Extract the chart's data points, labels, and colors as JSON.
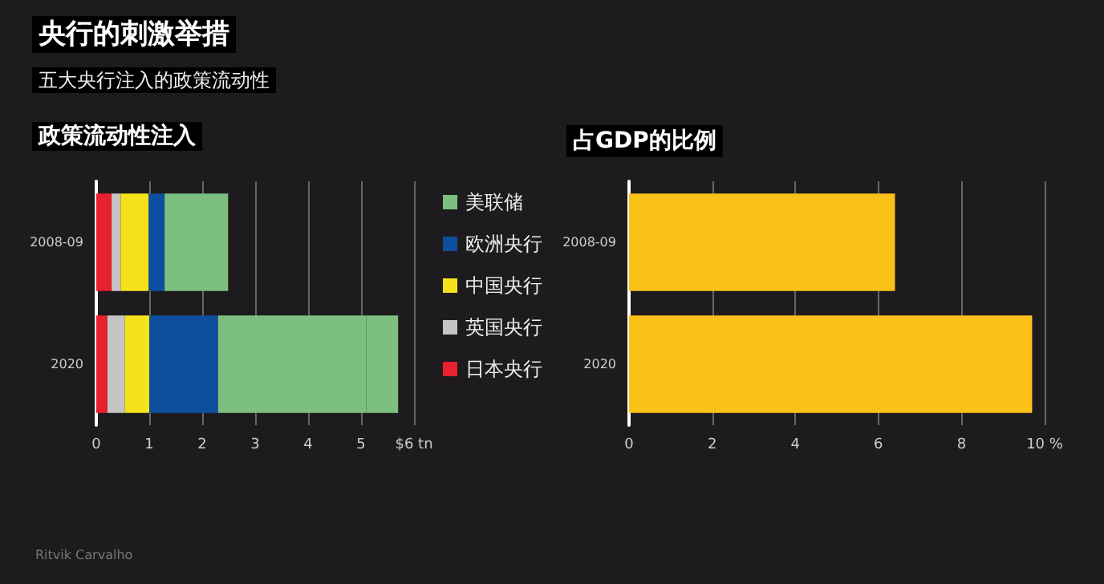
{
  "chart_data": [
    {
      "type": "bar",
      "title": "央行的刺激举措",
      "subtitle": "五大央行注入的政策流动性",
      "annotations": [
        "政策流动性注入",
        "Ritvik Carvalho"
      ],
      "categories": [
        "2008-09",
        "2020"
      ],
      "orientation": "horizontal",
      "stacked": true,
      "series": [
        {
          "name": "日本央行",
          "color": "#e8202f",
          "values": [
            0.29,
            0.21
          ]
        },
        {
          "name": "英国央行",
          "color": "#c4c4c4",
          "values": [
            0.17,
            0.33
          ]
        },
        {
          "name": "中国央行",
          "color": "#f5e21b",
          "values": [
            0.53,
            0.46
          ]
        },
        {
          "name": "欧洲央行",
          "color": "#0d4f9e",
          "values": [
            0.3,
            1.3
          ]
        },
        {
          "name": "美联储",
          "color": "#7dbf7f",
          "values": [
            1.2,
            2.8
          ]
        },
        {
          "color": "#7dbf7f",
          "values": [
            null,
            0.6
          ]
        }
      ],
      "xlim": [
        0,
        6
      ],
      "xticks": [
        0,
        1,
        2,
        3,
        4,
        5,
        {
          "value": 6,
          "label": "$6 tn"
        }
      ],
      "grid": "x",
      "legend": "right"
    },
    {
      "type": "bar",
      "title": "占GDP的比例",
      "categories": [
        "2008-09",
        "2020"
      ],
      "orientation": "horizontal",
      "series": [
        {
          "color": "#fcc119",
          "values": [
            6.4,
            9.7
          ]
        }
      ],
      "xlim": [
        0,
        10
      ],
      "xticks": [
        0,
        2,
        4,
        6,
        8,
        {
          "value": 10,
          "label": "10 %"
        }
      ],
      "grid": "x"
    }
  ]
}
